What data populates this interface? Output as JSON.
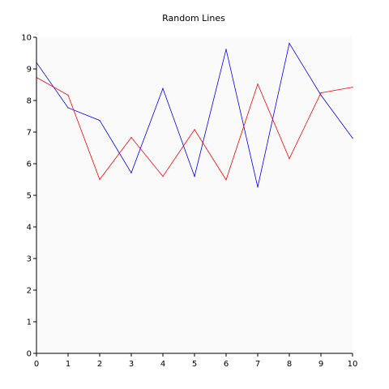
{
  "chart_data": {
    "type": "line",
    "title": "Random Lines",
    "xlabel": "",
    "ylabel": "",
    "xlim": [
      0,
      10
    ],
    "ylim": [
      0,
      10
    ],
    "xticks": [
      "0",
      "1",
      "2",
      "3",
      "4",
      "5",
      "6",
      "7",
      "8",
      "9",
      "10"
    ],
    "yticks": [
      "0",
      "1",
      "2",
      "3",
      "4",
      "5",
      "6",
      "7",
      "8",
      "9",
      "10"
    ],
    "grid": false,
    "legend": "none",
    "plot_background": "#fafafa",
    "x": [
      0,
      1,
      2,
      3,
      4,
      5,
      6,
      7,
      8,
      9,
      10
    ],
    "series": [
      {
        "color": "#0000ff",
        "values": [
          9.2,
          7.77,
          7.37,
          5.71,
          8.38,
          5.6,
          9.62,
          5.26,
          9.81,
          8.17,
          6.81
        ]
      },
      {
        "color": "#ff0000",
        "values": [
          8.73,
          8.17,
          5.5,
          6.83,
          5.6,
          7.08,
          5.49,
          8.52,
          6.16,
          8.24,
          8.42
        ]
      }
    ]
  }
}
